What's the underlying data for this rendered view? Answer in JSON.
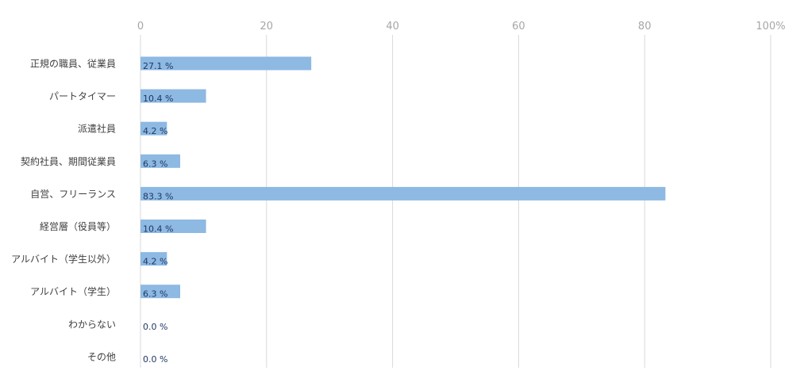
{
  "chart_data": {
    "type": "bar",
    "orientation": "horizontal",
    "categories": [
      "正規の職員、従業員",
      "パートタイマー",
      "派遣社員",
      "契約社員、期間従業員",
      "自営、フリーランス",
      "経営層（役員等）",
      "アルバイト（学生以外）",
      "アルバイト（学生）",
      "わからない",
      "その他"
    ],
    "values": [
      27.1,
      10.4,
      4.2,
      6.3,
      83.3,
      10.4,
      4.2,
      6.3,
      0.0,
      0.0
    ],
    "data_labels": [
      "27.1 %",
      "10.4 %",
      "4.2 %",
      "6.3 %",
      "83.3 %",
      "10.4 %",
      "4.2 %",
      "6.3 %",
      "0.0 %",
      "0.0 %"
    ],
    "x_ticks": [
      "0",
      "20",
      "40",
      "60",
      "80",
      "100%"
    ],
    "xlim": [
      0,
      100
    ],
    "x_axis_position": "top",
    "grid": true,
    "bar_color": "#8db9e3",
    "gridline_color": "#d9d9d9",
    "tick_color": "#a6a6a6",
    "label_color": "#1f3864"
  }
}
